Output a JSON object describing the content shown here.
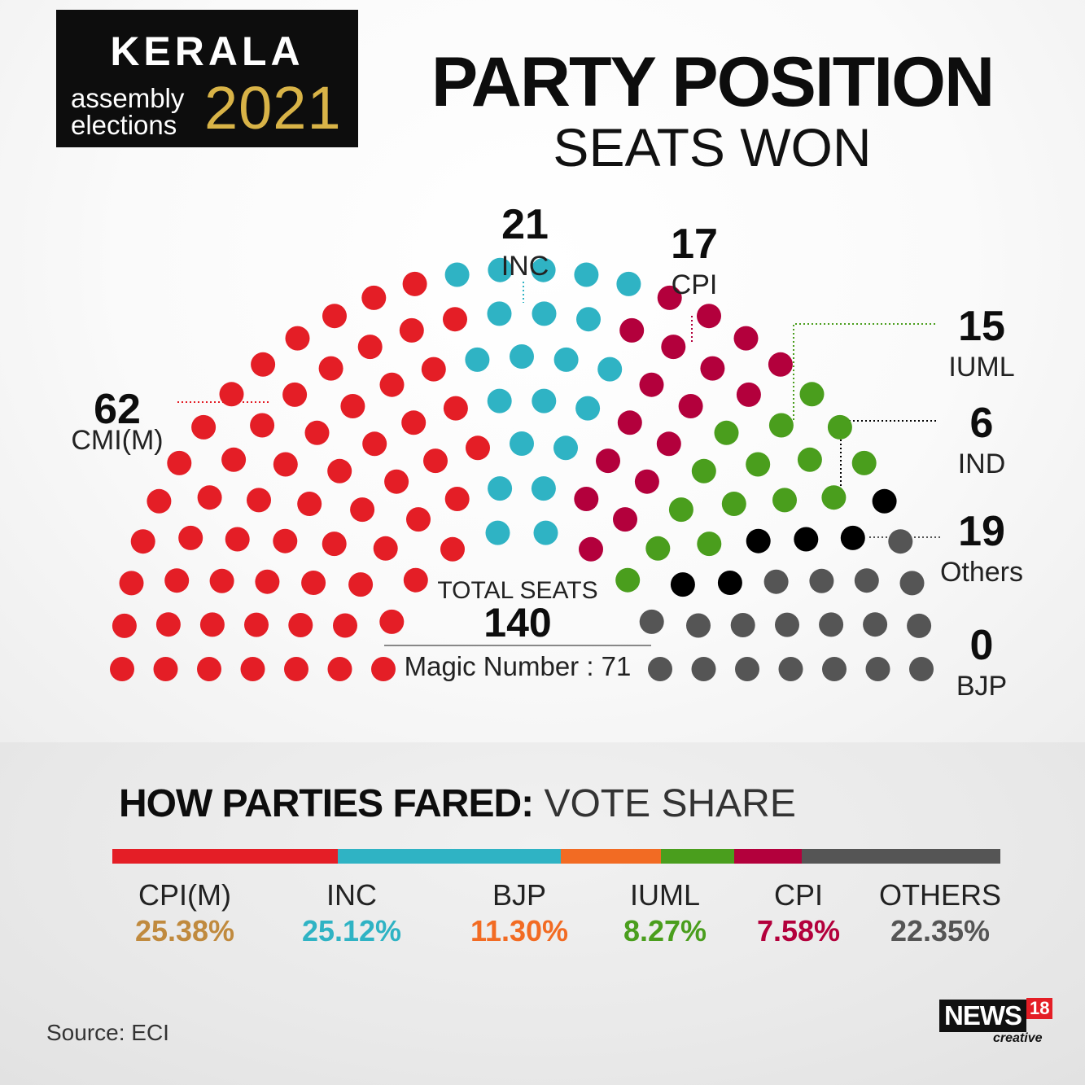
{
  "badge": {
    "state": "KERALA",
    "line1": "assembly",
    "line2": "elections",
    "year": "2021"
  },
  "title": "PARTY POSITION",
  "subtitle": "SEATS WON",
  "center": {
    "total_label": "TOTAL SEATS",
    "total": "140",
    "magic": "Magic Number : 71"
  },
  "colors": {
    "red": "#e41e26",
    "teal": "#2fb3c4",
    "maroon": "#b3003c",
    "green": "#4a9e1d",
    "black": "#000000",
    "grey": "#555555",
    "orange": "#f26b23",
    "gold": "#c08a3e"
  },
  "chart_data": [
    {
      "type": "parliament",
      "title": "PARTY POSITION",
      "subtitle": "SEATS WON",
      "total_seats": 140,
      "magic_number": 71,
      "parties": [
        {
          "name": "CMI(M)",
          "seats": 62,
          "color": "#e41e26"
        },
        {
          "name": "INC",
          "seats": 21,
          "color": "#2fb3c4"
        },
        {
          "name": "CPI",
          "seats": 17,
          "color": "#b3003c"
        },
        {
          "name": "IUML",
          "seats": 15,
          "color": "#4a9e1d"
        },
        {
          "name": "IND",
          "seats": 6,
          "color": "#000000"
        },
        {
          "name": "Others",
          "seats": 19,
          "color": "#555555"
        },
        {
          "name": "BJP",
          "seats": 0,
          "color": "#555555"
        }
      ]
    },
    {
      "type": "bar",
      "title": "HOW PARTIES FARED:",
      "subtitle": "VOTE SHARE",
      "unit": "%",
      "segments": [
        {
          "name": "CPI(M)",
          "value": 25.38,
          "label": "25.38%",
          "bar_color": "#e41e26",
          "label_color": "#c08a3e"
        },
        {
          "name": "INC",
          "value": 25.12,
          "label": "25.12%",
          "bar_color": "#2fb3c4",
          "label_color": "#2fb3c4"
        },
        {
          "name": "BJP",
          "value": 11.3,
          "label": "11.30%",
          "bar_color": "#f26b23",
          "label_color": "#f26b23"
        },
        {
          "name": "IUML",
          "value": 8.27,
          "label": "8.27%",
          "bar_color": "#4a9e1d",
          "label_color": "#4a9e1d"
        },
        {
          "name": "CPI",
          "value": 7.58,
          "label": "7.58%",
          "bar_color": "#b3003c",
          "label_color": "#b3003c"
        },
        {
          "name": "OTHERS",
          "value": 22.35,
          "label": "22.35%",
          "bar_color": "#555555",
          "label_color": "#555555"
        }
      ]
    }
  ],
  "source": "Source: ECI",
  "logo": {
    "text": "NEWS",
    "number": "18",
    "tagline": "creative"
  }
}
